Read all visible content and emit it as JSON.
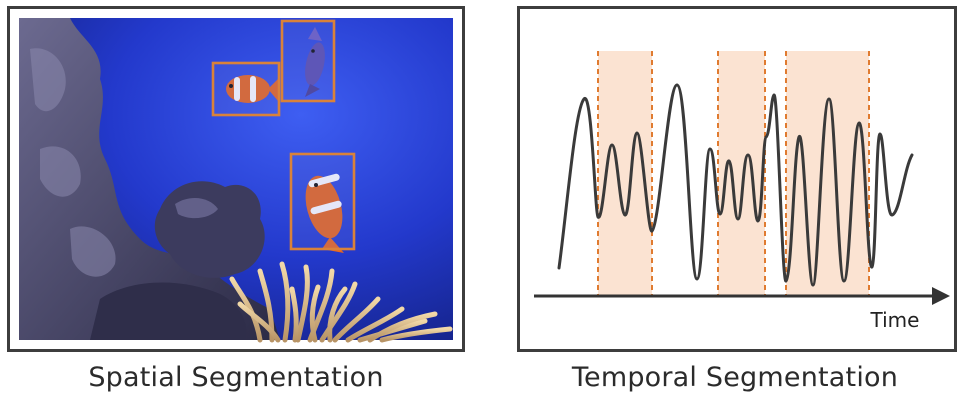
{
  "spatial": {
    "caption": "Spatial Segmentation",
    "colors": {
      "water_deep": "#1b2fb8",
      "water_light": "#3d5cf0",
      "coral": "#4a4a6e",
      "box": "#d9823a"
    }
  },
  "temporal": {
    "caption": "Temporal Segmentation",
    "axis_label": "Time",
    "colors": {
      "band_fill": "#fbe3d2",
      "band_edge": "#e07b30",
      "signal": "#3a3a3a",
      "axis": "#333333"
    }
  }
}
